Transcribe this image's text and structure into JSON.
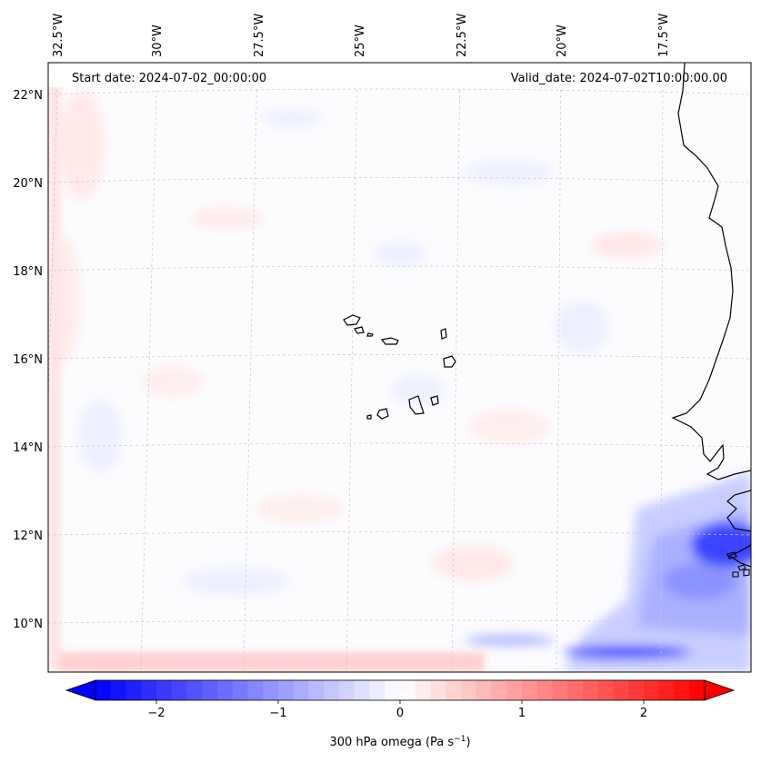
{
  "map": {
    "start_date": "Start date: 2024-07-02_00:00:00",
    "valid_date": "Valid_date: 2024-07-02T10:00:00.00",
    "lon_labels": [
      "32.5°W",
      "30°W",
      "27.5°W",
      "25°W",
      "22.5°W",
      "20°W",
      "17.5°W"
    ],
    "lat_labels": [
      "22°N",
      "20°N",
      "18°N",
      "16°N",
      "14°N",
      "12°N",
      "10°N"
    ]
  },
  "colorbar": {
    "label": "300 hPa omega (Pa s",
    "label_sup": "−1",
    "label_close": ")",
    "ticks": [
      "−2",
      "−1",
      "0",
      "1",
      "2"
    ],
    "tick_values": [
      -2,
      -1,
      0,
      1,
      2
    ],
    "range": [
      -2.5,
      2.5
    ],
    "extend": "both"
  },
  "colors": {
    "negative": "#0000ff",
    "neutral": "#ffffff",
    "positive": "#ff0000",
    "coastline": "#000000",
    "gridline": "#c8c8c8"
  }
}
